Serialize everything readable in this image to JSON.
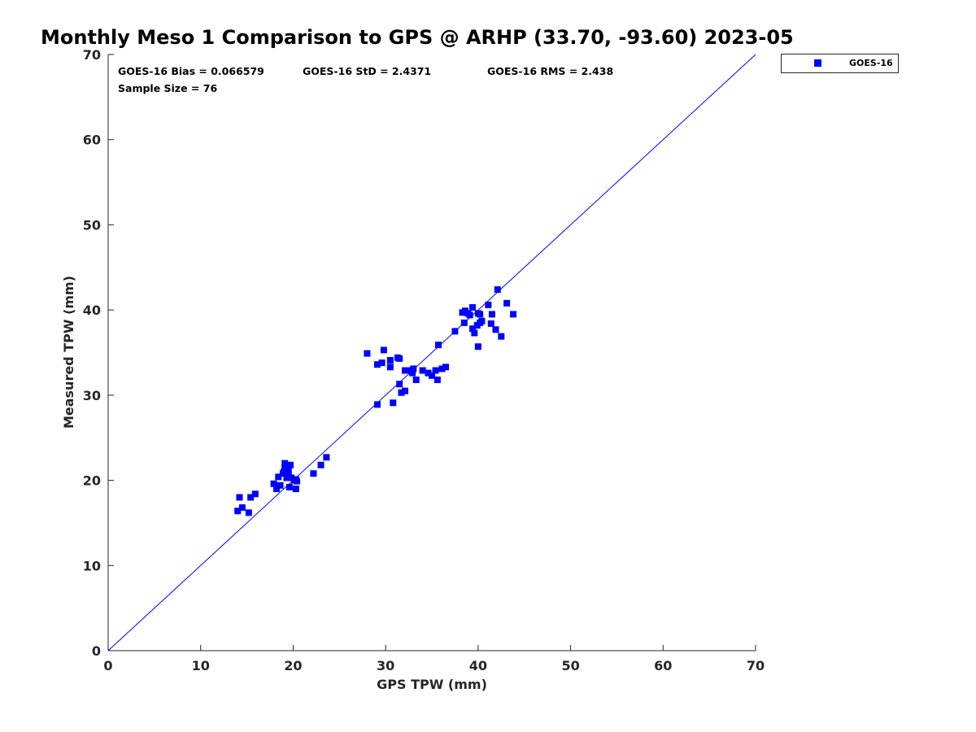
{
  "chart_data": {
    "type": "scatter",
    "title": "Monthly Meso 1 Comparison to GPS @ ARHP (33.70, -93.60) 2023-05",
    "xlabel": "GPS TPW (mm)",
    "ylabel": "Measured TPW (mm)",
    "xlim": [
      0,
      70
    ],
    "ylim": [
      0,
      70
    ],
    "xticks": [
      "0",
      "10",
      "20",
      "30",
      "40",
      "50",
      "60",
      "70"
    ],
    "yticks": [
      "0",
      "10",
      "20",
      "30",
      "40",
      "50",
      "60",
      "70"
    ],
    "grid": false,
    "legend_position": "top-right outside",
    "colors": {
      "series": "#0000ff",
      "reference_line": "#0000ff"
    },
    "stats": {
      "bias": "GOES-16 Bias = 0.066579",
      "std": "GOES-16 StD = 2.4371",
      "rms": "GOES-16 RMS = 2.438",
      "sample_size": "Sample Size = 76"
    },
    "reference_line": {
      "x": [
        0,
        70
      ],
      "y": [
        0,
        70
      ]
    },
    "series": [
      {
        "name": "GOES-16",
        "marker": "square",
        "points": [
          [
            14.0,
            16.4
          ],
          [
            14.5,
            16.8
          ],
          [
            15.2,
            16.2
          ],
          [
            14.2,
            18.0
          ],
          [
            15.4,
            18.0
          ],
          [
            15.9,
            18.4
          ],
          [
            17.9,
            19.6
          ],
          [
            18.2,
            19.0
          ],
          [
            18.6,
            19.4
          ],
          [
            18.4,
            20.4
          ],
          [
            18.9,
            20.8
          ],
          [
            19.0,
            21.0
          ],
          [
            19.1,
            21.5
          ],
          [
            19.1,
            22.0
          ],
          [
            19.3,
            20.3
          ],
          [
            19.5,
            20.6
          ],
          [
            19.7,
            21.8
          ],
          [
            19.6,
            19.2
          ],
          [
            19.8,
            20.3
          ],
          [
            20.1,
            20.0
          ],
          [
            20.3,
            20.1
          ],
          [
            20.3,
            19.0
          ],
          [
            20.4,
            19.9
          ],
          [
            19.5,
            21.2
          ],
          [
            22.2,
            20.8
          ],
          [
            23.0,
            21.8
          ],
          [
            23.6,
            22.7
          ],
          [
            28.0,
            34.9
          ],
          [
            29.1,
            33.6
          ],
          [
            29.1,
            28.9
          ],
          [
            29.6,
            33.8
          ],
          [
            29.8,
            35.3
          ],
          [
            30.5,
            33.3
          ],
          [
            30.5,
            34.1
          ],
          [
            30.8,
            29.1
          ],
          [
            31.3,
            34.4
          ],
          [
            31.5,
            34.3
          ],
          [
            31.5,
            31.3
          ],
          [
            31.7,
            30.3
          ],
          [
            32.1,
            30.5
          ],
          [
            32.1,
            32.9
          ],
          [
            32.8,
            32.9
          ],
          [
            32.9,
            32.6
          ],
          [
            33.0,
            33.1
          ],
          [
            33.3,
            31.8
          ],
          [
            34.0,
            32.9
          ],
          [
            34.6,
            32.6
          ],
          [
            35.0,
            32.3
          ],
          [
            35.4,
            32.9
          ],
          [
            35.6,
            31.8
          ],
          [
            35.7,
            35.9
          ],
          [
            36.1,
            33.1
          ],
          [
            36.5,
            33.3
          ],
          [
            37.5,
            37.5
          ],
          [
            38.3,
            39.7
          ],
          [
            38.5,
            38.5
          ],
          [
            38.6,
            39.9
          ],
          [
            38.9,
            39.6
          ],
          [
            39.4,
            40.3
          ],
          [
            39.4,
            37.8
          ],
          [
            39.6,
            37.3
          ],
          [
            39.9,
            38.2
          ],
          [
            40.0,
            35.7
          ],
          [
            40.2,
            38.5
          ],
          [
            40.2,
            39.5
          ],
          [
            40.4,
            38.7
          ],
          [
            41.1,
            40.6
          ],
          [
            41.4,
            38.4
          ],
          [
            41.5,
            39.5
          ],
          [
            41.9,
            37.7
          ],
          [
            42.1,
            42.4
          ],
          [
            42.5,
            36.9
          ],
          [
            43.1,
            40.8
          ],
          [
            43.8,
            39.5
          ],
          [
            39.1,
            39.4
          ],
          [
            40.0,
            39.6
          ]
        ]
      }
    ]
  }
}
